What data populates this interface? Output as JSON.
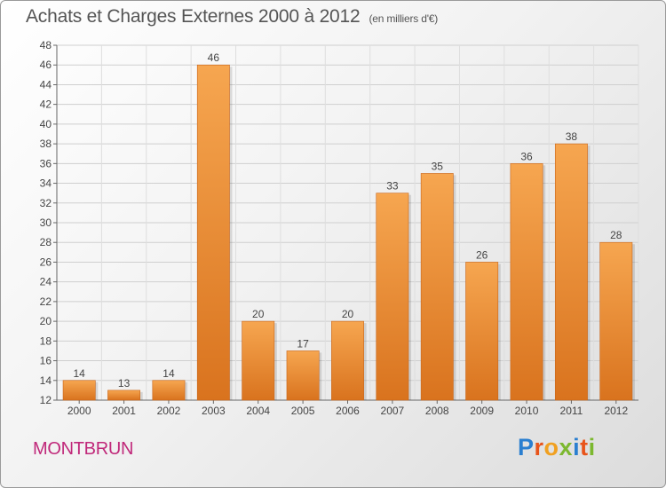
{
  "title": "Achats et Charges Externes 2000 à 2012",
  "subtitle": "(en milliers d'€)",
  "commune": "MONTBRUN",
  "logo": {
    "text": "Proxiti",
    "letters": [
      {
        "ch": "P",
        "color": "#2b7fd0"
      },
      {
        "ch": "r",
        "color": "#e8541a"
      },
      {
        "ch": "o",
        "color": "#f0a020"
      },
      {
        "ch": "x",
        "color": "#7cb82f"
      },
      {
        "ch": "i",
        "color": "#2b7fd0"
      },
      {
        "ch": "t",
        "color": "#e8541a"
      },
      {
        "ch": "i",
        "color": "#7cb82f"
      }
    ]
  },
  "chart_data": {
    "type": "bar",
    "categories": [
      "2000",
      "2001",
      "2002",
      "2003",
      "2004",
      "2005",
      "2006",
      "2007",
      "2008",
      "2009",
      "2010",
      "2011",
      "2012"
    ],
    "values": [
      14,
      13,
      14,
      46,
      20,
      17,
      20,
      33,
      35,
      26,
      36,
      38,
      28
    ],
    "ylim": [
      12,
      48
    ],
    "yticks": [
      12,
      14,
      16,
      18,
      20,
      22,
      24,
      26,
      28,
      30,
      32,
      34,
      36,
      38,
      40,
      42,
      44,
      46,
      48
    ],
    "grid": true,
    "bar_color_light": "#f6a650",
    "bar_color_dark": "#d9731e",
    "title": "Achats et Charges Externes 2000 à 2012",
    "xlabel": "",
    "ylabel": ""
  }
}
